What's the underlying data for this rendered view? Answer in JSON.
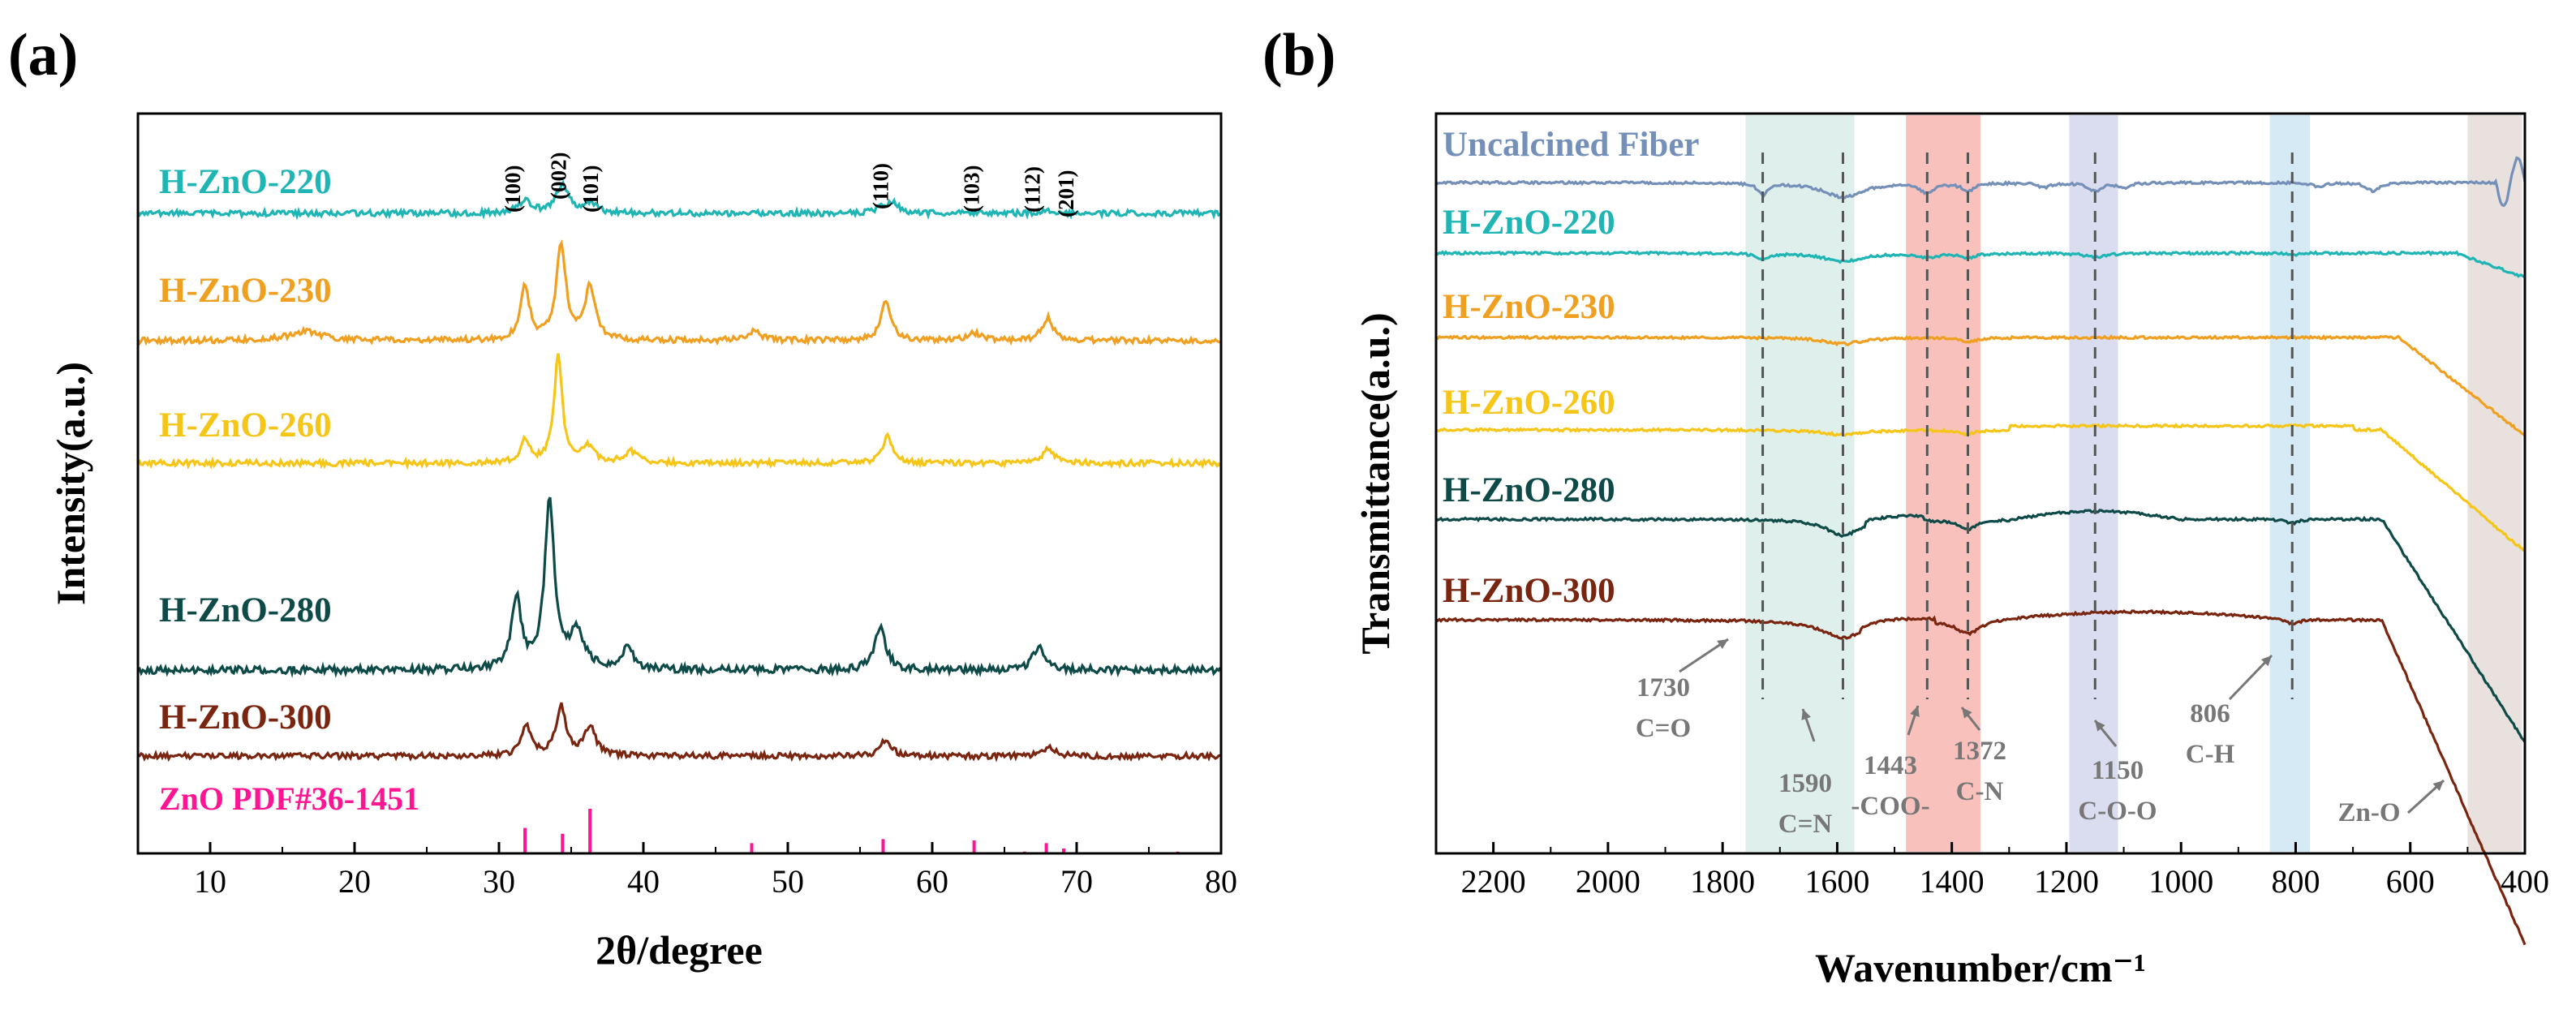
{
  "chart_data": [
    {
      "panel": "(a)",
      "type": "line",
      "title": "",
      "xlabel": "2θ/degree",
      "ylabel": "Intensity(a.u.)",
      "xlim": [
        5,
        80
      ],
      "xticks": [
        "10",
        "20",
        "30",
        "40",
        "50",
        "60",
        "70",
        "80"
      ],
      "yticks": false,
      "series": [
        {
          "name": "H-ZnO-220",
          "color": "#1fb5b5",
          "offset": 4.55,
          "scale": 0.42,
          "peaks": [
            [
              31.8,
              0.25,
              0.55
            ],
            [
              34.4,
              0.55,
              0.5
            ],
            [
              36.3,
              0.2,
              0.55
            ],
            [
              56.6,
              0.1,
              0.5
            ],
            [
              57.3,
              0.18,
              0.5
            ],
            [
              68.0,
              0.06,
              0.6
            ]
          ]
        },
        {
          "name": "H-ZnO-230",
          "color": "#f0a020",
          "offset": 3.55,
          "scale": 0.62,
          "peaks": [
            [
              16.6,
              0.12,
              1.4
            ],
            [
              31.8,
              0.7,
              0.38
            ],
            [
              34.3,
              1.25,
              0.4
            ],
            [
              36.3,
              0.72,
              0.42
            ],
            [
              47.6,
              0.12,
              0.6
            ],
            [
              56.8,
              0.52,
              0.42
            ],
            [
              62.9,
              0.1,
              0.6
            ],
            [
              68.0,
              0.3,
              0.45
            ]
          ]
        },
        {
          "name": "H-ZnO-260",
          "color": "#f5c518",
          "offset": 2.7,
          "scale": 0.62,
          "peaks": [
            [
              31.8,
              0.32,
              0.36
            ],
            [
              34.1,
              1.45,
              0.33
            ],
            [
              36.2,
              0.22,
              0.45
            ],
            [
              39.2,
              0.15,
              0.6
            ],
            [
              56.9,
              0.36,
              0.4
            ],
            [
              68.0,
              0.2,
              0.45
            ]
          ]
        },
        {
          "name": "H-ZnO-280",
          "color": "#0d4a48",
          "offset": 1.72,
          "scale": 0.62,
          "peaks": [
            [
              31.2,
              0.95,
              0.4
            ],
            [
              33.5,
              2.25,
              0.4
            ],
            [
              35.4,
              0.48,
              0.6
            ],
            [
              38.9,
              0.3,
              0.45
            ],
            [
              56.4,
              0.58,
              0.45
            ],
            [
              67.4,
              0.32,
              0.5
            ]
          ]
        },
        {
          "name": "H-ZnO-300",
          "color": "#7a2510",
          "offset": 1.05,
          "scale": 0.42,
          "peaks": [
            [
              31.9,
              0.58,
              0.4
            ],
            [
              34.3,
              0.95,
              0.42
            ],
            [
              36.3,
              0.58,
              0.45
            ],
            [
              56.8,
              0.32,
              0.45
            ],
            [
              68.1,
              0.16,
              0.5
            ]
          ]
        }
      ],
      "reference": {
        "name": "ZnO PDF#36-1451",
        "color": "#ff1493",
        "positions": [
          31.8,
          34.4,
          36.3,
          47.5,
          56.6,
          62.9,
          66.4,
          67.9,
          69.1,
          72.6,
          77.0
        ],
        "intensities": [
          57,
          44,
          100,
          23,
          32,
          29,
          4,
          23,
          11,
          2,
          4
        ]
      },
      "hkl_labels": [
        {
          "label": "(100)",
          "x": 31.8
        },
        {
          "label": "(002)",
          "x": 34.4
        },
        {
          "label": "(101)",
          "x": 36.3
        },
        {
          "label": "(110)",
          "x": 56.6
        },
        {
          "label": "(103)",
          "x": 62.9
        },
        {
          "label": "(112)",
          "x": 67.9
        },
        {
          "label": "(201)",
          "x": 69.1
        }
      ]
    },
    {
      "panel": "(b)",
      "type": "line",
      "title": "",
      "xlabel": "Wavenumber/cm⁻¹",
      "ylabel": "Transmittance(a.u.)",
      "xlim": [
        2300,
        400
      ],
      "x_reversed": true,
      "xticks": [
        "2200",
        "2000",
        "1800",
        "1600",
        "1400",
        "1200",
        "1000",
        "800",
        "600",
        "400"
      ],
      "yticks": false,
      "shaded_bands": [
        {
          "from": 1760,
          "to": 1570,
          "color": "#d9ece9"
        },
        {
          "from": 1480,
          "to": 1350,
          "color": "#f7b6b0"
        },
        {
          "from": 1195,
          "to": 1110,
          "color": "#d3d6ec"
        },
        {
          "from": 845,
          "to": 775,
          "color": "#cfe6f3"
        },
        {
          "from": 500,
          "to": 405,
          "color": "#e4dcd8"
        }
      ],
      "series": [
        {
          "name": "Uncalcined Fiber",
          "color": "#7590b8",
          "offset": 5.6,
          "label_dx": 0
        },
        {
          "name": "H-ZnO-220",
          "color": "#1fb5b5",
          "offset": 4.7
        },
        {
          "name": "H-ZnO-230",
          "color": "#f0a020",
          "offset": 3.6
        },
        {
          "name": "H-ZnO-260",
          "color": "#f5c518",
          "offset": 2.55
        },
        {
          "name": "H-ZnO-280",
          "color": "#0d4a48",
          "offset": 1.55
        },
        {
          "name": "H-ZnO-300",
          "color": "#7a2510",
          "offset": 0.45
        }
      ],
      "peak_markers": [
        {
          "x": 1730,
          "value": "1730",
          "assignment": "C=O"
        },
        {
          "x": 1590,
          "value": "1590",
          "assignment": "C=N"
        },
        {
          "x": 1443,
          "value": "1443",
          "assignment": "-COO-"
        },
        {
          "x": 1372,
          "value": "1372",
          "assignment": "C-N"
        },
        {
          "x": 1150,
          "value": "1150",
          "assignment": "C-O-O"
        },
        {
          "x": 806,
          "value": "806",
          "assignment": "C-H"
        }
      ],
      "extra_annotation": {
        "label": "Zn-O",
        "x": 440
      }
    }
  ]
}
